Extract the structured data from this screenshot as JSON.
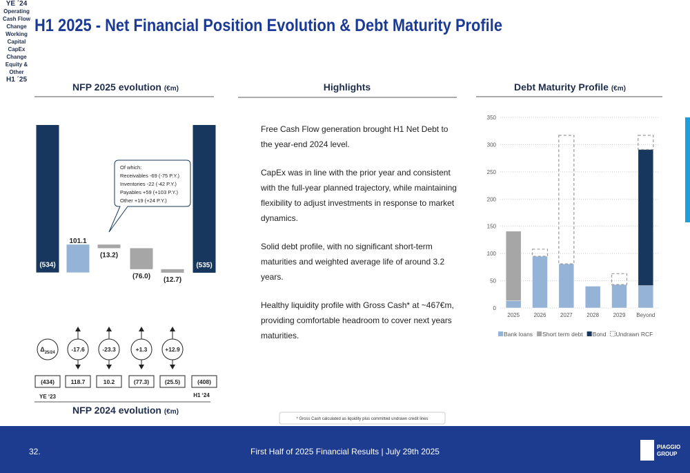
{
  "title": "H1 2025 - Net Financial Position Evolution & Debt Maturity Profile",
  "highlights": {
    "title": "Highlights",
    "paragraphs": [
      "Free Cash Flow generation brought H1 Net Debt to the year-end 2024 level.",
      "CapEx was in line with the prior year and consistent with the full-year planned trajectory, while maintaining flexibility to adjust investments in response to market dynamics.",
      "Solid debt profile, with no significant short-term maturities and weighted average life of around 3.2 years.",
      "Healthy liquidity profile with Gross Cash* at ~467€m, providing comfortable headroom to cover next years maturities."
    ],
    "footnote": "* Gross Cash calculated as liquidity plus committed undrawn credit lines"
  },
  "footer": {
    "page": "32.",
    "text": "First Half of 2025 Financial Results | July 29th 2025",
    "logo": [
      "PIAGGIO",
      "GROUP"
    ]
  },
  "chart_data": [
    {
      "type": "waterfall",
      "title": "NFP 2025 evolution",
      "unit": "(€m)",
      "categories": [
        "YE ´24",
        "Operating Cash Flow",
        "Change Working Capital",
        "CapEx",
        "Change Equity & Other",
        "H1 ´25"
      ],
      "values": [
        -534,
        101.1,
        -13.2,
        -76.0,
        -12.7,
        -535
      ],
      "value_labels": [
        "(534)",
        "101.1",
        "(13.2)",
        "(76.0)",
        "(12.7)",
        "(535)"
      ],
      "measure": [
        "total",
        "relative",
        "relative",
        "relative",
        "relative",
        "total"
      ],
      "colors": {
        "total": "#17375e",
        "increase": "#95b3d7",
        "decrease": "#a6a6a6"
      },
      "callout": [
        "Of which:",
        "Receivables -69 (-75 P.Y.)",
        "Inventories -22 (-42 P.Y.)",
        "Payables +59 (+103 P.Y.)",
        "Other +19 (+24 P.Y.)"
      ],
      "comparison": {
        "title": "NFP 2024 evolution",
        "unit": "(€m)",
        "delta_symbol": "Δ",
        "delta_sub": "25/24",
        "deltas": [
          "-17.6",
          "-23.3",
          "+1.3",
          "+12.9"
        ],
        "values": [
          "(434)",
          "118.7",
          "10.2",
          "(77.3)",
          "(25.5)",
          "(408)"
        ],
        "start_label": "YE ‘23",
        "end_label": "H1 ‘24"
      }
    },
    {
      "type": "stacked_bar",
      "title": "Debt Maturity Profile",
      "unit": "(€m)",
      "categories": [
        "2025",
        "2026",
        "2027",
        "2028",
        "2029",
        "Beyond"
      ],
      "series": [
        {
          "name": "Bank loans",
          "color": "#95b3d7",
          "values": [
            13,
            95,
            81,
            40,
            43,
            41
          ]
        },
        {
          "name": "Short term debt",
          "color": "#a6a6a6",
          "values": [
            128,
            0,
            0,
            0,
            0,
            0
          ]
        },
        {
          "name": "Bond",
          "color": "#17375e",
          "values": [
            0,
            0,
            0,
            0,
            0,
            250
          ]
        },
        {
          "name": "Undrawn RCF",
          "color": "#999999",
          "dashed": true,
          "values": [
            0,
            13,
            236,
            0,
            20,
            26
          ]
        }
      ],
      "ylim": [
        0,
        350
      ],
      "yticks": [
        0,
        50,
        100,
        150,
        200,
        250,
        300,
        350
      ],
      "grid": true
    }
  ]
}
